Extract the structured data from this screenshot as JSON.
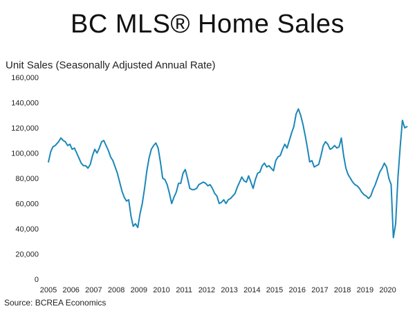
{
  "header": {
    "title": "BC MLS® Home Sales",
    "subtitle": "Unit Sales (Seasonally Adjusted Annual Rate)"
  },
  "footer": {
    "source": "Source: BCREA Economics"
  },
  "chart_data": {
    "type": "line",
    "ylabel": "Unit Sales (Seasonally Adjusted Annual Rate)",
    "ylim": [
      0,
      160000
    ],
    "xlim": [
      2005,
      2020.9
    ],
    "y_ticks": [
      {
        "value": 0,
        "label": "0"
      },
      {
        "value": 20000,
        "label": "20,000"
      },
      {
        "value": 40000,
        "label": "40,000"
      },
      {
        "value": 60000,
        "label": "60,000"
      },
      {
        "value": 80000,
        "label": "80,000"
      },
      {
        "value": 100000,
        "label": "100,000"
      },
      {
        "value": 120000,
        "label": "120,000"
      },
      {
        "value": 140000,
        "label": "140,000"
      },
      {
        "value": 160000,
        "label": "160,000"
      }
    ],
    "x_ticks": [
      {
        "value": 2005,
        "label": "2005"
      },
      {
        "value": 2006,
        "label": "2006"
      },
      {
        "value": 2007,
        "label": "2007"
      },
      {
        "value": 2008,
        "label": "2008"
      },
      {
        "value": 2009,
        "label": "2009"
      },
      {
        "value": 2010,
        "label": "2010"
      },
      {
        "value": 2011,
        "label": "2011"
      },
      {
        "value": 2012,
        "label": "2012"
      },
      {
        "value": 2013,
        "label": "2013"
      },
      {
        "value": 2014,
        "label": "2014"
      },
      {
        "value": 2015,
        "label": "2015"
      },
      {
        "value": 2016,
        "label": "2016"
      },
      {
        "value": 2017,
        "label": "2017"
      },
      {
        "value": 2018,
        "label": "2018"
      },
      {
        "value": 2019,
        "label": "2019"
      },
      {
        "value": 2020,
        "label": "2020"
      }
    ],
    "grid": false,
    "legend": "none",
    "series_color": "#1a87b8",
    "series": [
      {
        "x": [
          2005.0,
          2005.1,
          2005.2,
          2005.3,
          2005.45,
          2005.55,
          2005.65,
          2005.75,
          2005.85,
          2005.95,
          2006.05,
          2006.15,
          2006.25,
          2006.35,
          2006.45,
          2006.55,
          2006.65,
          2006.75,
          2006.85,
          2006.95,
          2007.05,
          2007.15,
          2007.25,
          2007.35,
          2007.45,
          2007.55,
          2007.65,
          2007.75,
          2007.85,
          2007.95,
          2008.05,
          2008.15,
          2008.25,
          2008.35,
          2008.45,
          2008.55,
          2008.65,
          2008.75,
          2008.85,
          2008.95,
          2009.05,
          2009.15,
          2009.25,
          2009.35,
          2009.45,
          2009.55,
          2009.65,
          2009.75,
          2009.85,
          2009.95,
          2010.05,
          2010.15,
          2010.25,
          2010.35,
          2010.45,
          2010.55,
          2010.65,
          2010.75,
          2010.85,
          2010.95,
          2011.05,
          2011.15,
          2011.25,
          2011.35,
          2011.45,
          2011.55,
          2011.65,
          2011.75,
          2011.85,
          2011.95,
          2012.05,
          2012.15,
          2012.25,
          2012.35,
          2012.45,
          2012.55,
          2012.65,
          2012.75,
          2012.85,
          2012.95,
          2013.05,
          2013.15,
          2013.25,
          2013.35,
          2013.45,
          2013.55,
          2013.65,
          2013.75,
          2013.85,
          2013.95,
          2014.05,
          2014.15,
          2014.25,
          2014.35,
          2014.45,
          2014.55,
          2014.65,
          2014.75,
          2014.85,
          2014.95,
          2015.05,
          2015.15,
          2015.25,
          2015.35,
          2015.45,
          2015.55,
          2015.65,
          2015.75,
          2015.85,
          2015.95,
          2016.05,
          2016.15,
          2016.25,
          2016.35,
          2016.45,
          2016.55,
          2016.65,
          2016.75,
          2016.85,
          2016.95,
          2017.05,
          2017.15,
          2017.25,
          2017.35,
          2017.45,
          2017.55,
          2017.65,
          2017.75,
          2017.85,
          2017.95,
          2018.05,
          2018.15,
          2018.25,
          2018.35,
          2018.45,
          2018.55,
          2018.65,
          2018.75,
          2018.85,
          2018.95,
          2019.05,
          2019.15,
          2019.25,
          2019.35,
          2019.45,
          2019.55,
          2019.65,
          2019.75,
          2019.85,
          2019.95,
          2020.05,
          2020.15,
          2020.25,
          2020.35,
          2020.45,
          2020.55,
          2020.65,
          2020.75,
          2020.85
        ],
        "values": [
          93000,
          101000,
          105000,
          106000,
          109000,
          112000,
          110000,
          109000,
          106000,
          107000,
          103000,
          104000,
          100000,
          96000,
          92000,
          90000,
          90000,
          88000,
          91000,
          98000,
          103000,
          100000,
          104000,
          109000,
          110000,
          106000,
          102000,
          97000,
          94000,
          89000,
          84000,
          77000,
          70000,
          65000,
          62000,
          63000,
          50000,
          42000,
          44000,
          41000,
          52000,
          60000,
          72000,
          86000,
          96000,
          103000,
          106000,
          108000,
          104000,
          93000,
          80000,
          79000,
          75000,
          68000,
          60000,
          65000,
          69000,
          76000,
          76000,
          84000,
          87000,
          80000,
          72000,
          71000,
          71000,
          72000,
          75000,
          76000,
          77000,
          76000,
          74000,
          75000,
          72000,
          68000,
          66000,
          60000,
          61000,
          63000,
          60000,
          63000,
          64000,
          66000,
          68000,
          73000,
          77000,
          81000,
          78000,
          77000,
          82000,
          77000,
          72000,
          79000,
          84000,
          85000,
          90000,
          92000,
          89000,
          90000,
          88000,
          86000,
          94000,
          97000,
          98000,
          103000,
          107000,
          104000,
          110000,
          116000,
          121000,
          131000,
          135000,
          130000,
          123000,
          114000,
          104000,
          93000,
          94000,
          89000,
          90000,
          91000,
          98000,
          106000,
          109000,
          107000,
          103000,
          104000,
          106000,
          104000,
          105000,
          112000,
          98000,
          88000,
          83000,
          80000,
          77000,
          75000,
          74000,
          72000,
          69000,
          67000,
          66000,
          64000,
          66000,
          71000,
          75000,
          80000,
          85000,
          88000,
          92000,
          89000,
          80000,
          75000,
          33000,
          44000,
          80000,
          105000,
          126000,
          120000,
          121000
        ]
      }
    ]
  }
}
